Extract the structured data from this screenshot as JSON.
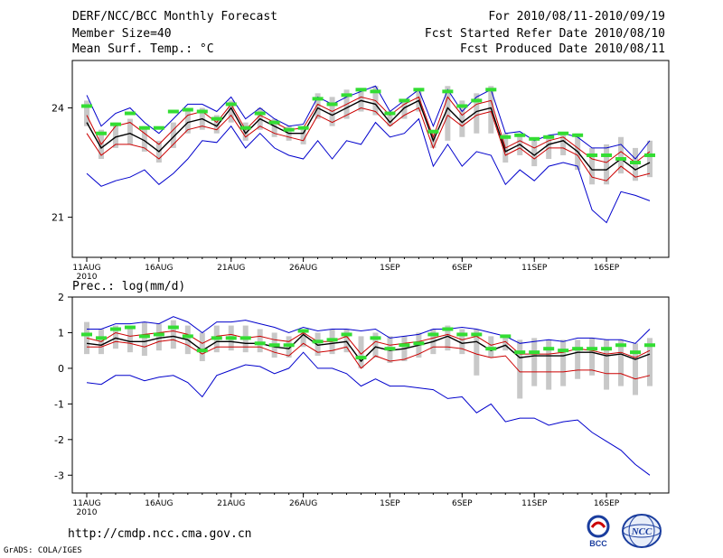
{
  "header": {
    "title": "DERF/NCC/BCC Monthly Forecast",
    "member": "Member Size=40",
    "variable": "Mean Surf. Temp.: °C",
    "period": "For 2010/08/11-2010/09/19",
    "started": "Fcst Started Refer Date 2010/08/10",
    "produced": "Fcst Produced Date 2010/08/11"
  },
  "footer": {
    "url": "http://cmdp.ncc.cma.gov.cn",
    "grads": "GrADS: COLA/IGES",
    "logo1": "BCC",
    "logo2": "NCC"
  },
  "colors": {
    "max_min": "#0000cc",
    "band": "#cc0000",
    "mean": "#000000",
    "box": "#c8c8c8",
    "obs": "#33dd33"
  },
  "chart_data": [
    {
      "type": "line",
      "title": "Mean Surf. Temp.: °C",
      "xlabel": "",
      "ylabel": "",
      "x_ticks": [
        "11AUG",
        "16AUG",
        "21AUG",
        "26AUG",
        "1SEP",
        "6SEP",
        "11SEP",
        "16SEP"
      ],
      "x_tick_days": [
        0,
        5,
        10,
        15,
        21,
        26,
        31,
        36
      ],
      "x_year": "2010",
      "ndays": 40,
      "ylim": [
        19.9,
        25.3
      ],
      "y_ticks": [
        21,
        24
      ],
      "series": [
        {
          "name": "max",
          "color": "#0000cc",
          "values": [
            24.35,
            23.5,
            23.85,
            24.0,
            23.6,
            23.3,
            23.7,
            24.1,
            24.1,
            23.9,
            24.3,
            23.7,
            24.0,
            23.7,
            23.5,
            23.55,
            24.3,
            24.1,
            24.3,
            24.45,
            24.6,
            23.9,
            24.2,
            24.5,
            23.5,
            24.5,
            23.9,
            24.3,
            24.5,
            23.3,
            23.35,
            23.1,
            23.25,
            23.3,
            23.2,
            22.9,
            22.9,
            23.0,
            22.6,
            23.1
          ]
        },
        {
          "name": "upper",
          "color": "#cc0000",
          "values": [
            23.8,
            23.0,
            23.5,
            23.6,
            23.3,
            23.0,
            23.4,
            23.8,
            23.9,
            23.6,
            24.1,
            23.4,
            23.8,
            23.6,
            23.4,
            23.45,
            24.1,
            23.9,
            24.1,
            24.3,
            24.2,
            23.8,
            24.1,
            24.3,
            23.2,
            24.3,
            23.8,
            24.1,
            24.2,
            22.9,
            23.1,
            22.9,
            23.1,
            23.2,
            22.9,
            22.6,
            22.5,
            22.8,
            22.5,
            22.8
          ]
        },
        {
          "name": "mean",
          "color": "#000000",
          "values": [
            23.6,
            22.9,
            23.2,
            23.3,
            23.1,
            22.8,
            23.2,
            23.6,
            23.7,
            23.5,
            24.0,
            23.3,
            23.7,
            23.5,
            23.3,
            23.3,
            24.0,
            23.8,
            24.0,
            24.2,
            24.1,
            23.6,
            24.0,
            24.2,
            23.1,
            24.0,
            23.6,
            23.9,
            24.0,
            22.8,
            23.0,
            22.7,
            23.0,
            23.1,
            22.8,
            22.3,
            22.3,
            22.6,
            22.3,
            22.5
          ]
        },
        {
          "name": "lower",
          "color": "#cc0000",
          "values": [
            23.3,
            22.7,
            23.0,
            23.0,
            22.9,
            22.6,
            23.0,
            23.4,
            23.5,
            23.4,
            23.8,
            23.2,
            23.5,
            23.3,
            23.2,
            23.1,
            23.8,
            23.6,
            23.8,
            24.0,
            23.9,
            23.5,
            23.8,
            24.0,
            22.9,
            23.8,
            23.5,
            23.8,
            23.9,
            22.7,
            22.9,
            22.6,
            22.9,
            22.9,
            22.7,
            22.1,
            22.0,
            22.4,
            22.1,
            22.2
          ]
        },
        {
          "name": "min",
          "color": "#0000cc",
          "values": [
            22.2,
            21.85,
            22.0,
            22.1,
            22.3,
            21.9,
            22.2,
            22.6,
            23.1,
            23.05,
            23.5,
            22.9,
            23.3,
            22.9,
            22.7,
            22.6,
            23.1,
            22.6,
            23.1,
            23.0,
            23.6,
            23.2,
            23.3,
            23.7,
            22.4,
            23.0,
            22.4,
            22.8,
            22.7,
            21.9,
            22.3,
            22.0,
            22.4,
            22.5,
            22.4,
            21.2,
            20.85,
            21.7,
            21.6,
            21.45
          ]
        }
      ],
      "boxes": {
        "lo": [
          23.5,
          22.6,
          22.9,
          23.0,
          22.8,
          22.5,
          22.9,
          23.3,
          23.4,
          23.3,
          23.6,
          23.1,
          23.4,
          23.2,
          23.1,
          23.0,
          23.7,
          23.5,
          23.7,
          23.9,
          23.8,
          23.5,
          23.7,
          23.9,
          22.9,
          23.1,
          23.2,
          23.3,
          23.3,
          22.5,
          22.7,
          22.4,
          22.6,
          22.7,
          22.3,
          21.9,
          21.9,
          22.2,
          22.0,
          22.1
        ],
        "hi": [
          24.2,
          23.4,
          23.6,
          23.7,
          23.5,
          23.1,
          23.6,
          24.0,
          24.0,
          23.8,
          24.2,
          23.6,
          24.0,
          23.7,
          23.5,
          23.4,
          24.4,
          24.3,
          24.5,
          24.5,
          24.6,
          23.9,
          24.2,
          24.5,
          23.3,
          24.6,
          24.2,
          24.4,
          24.6,
          23.3,
          23.3,
          23.1,
          23.2,
          23.3,
          23.3,
          22.9,
          23.0,
          23.2,
          22.9,
          23.1
        ]
      },
      "observed": [
        24.05,
        23.3,
        23.55,
        23.85,
        23.45,
        23.45,
        23.9,
        23.95,
        23.9,
        23.7,
        24.1,
        23.45,
        23.85,
        23.6,
        23.4,
        23.45,
        24.25,
        24.1,
        24.35,
        24.5,
        24.45,
        23.85,
        24.2,
        24.5,
        23.35,
        24.45,
        24.05,
        24.2,
        24.5,
        23.2,
        23.25,
        23.15,
        23.2,
        23.3,
        23.25,
        22.7,
        22.7,
        22.6,
        22.5,
        22.7
      ]
    },
    {
      "type": "line",
      "title": "Prec.: log(mm/d)",
      "xlabel": "",
      "ylabel": "",
      "x_ticks": [
        "11AUG",
        "16AUG",
        "21AUG",
        "26AUG",
        "1SEP",
        "6SEP",
        "11SEP",
        "16SEP"
      ],
      "x_tick_days": [
        0,
        5,
        10,
        15,
        21,
        26,
        31,
        36
      ],
      "x_year": "2010",
      "ndays": 40,
      "ylim": [
        -3.5,
        2.0
      ],
      "y_ticks": [
        -3,
        -2,
        -1,
        0,
        1,
        2
      ],
      "series": [
        {
          "name": "max",
          "color": "#0000cc",
          "values": [
            1.1,
            1.1,
            1.25,
            1.25,
            1.3,
            1.25,
            1.45,
            1.3,
            1.0,
            1.3,
            1.3,
            1.35,
            1.25,
            1.15,
            1.0,
            1.15,
            1.05,
            1.1,
            1.1,
            1.05,
            1.1,
            0.85,
            0.9,
            0.95,
            1.1,
            1.1,
            1.15,
            1.1,
            1.0,
            0.9,
            0.7,
            0.75,
            0.8,
            0.75,
            0.85,
            0.85,
            0.8,
            0.8,
            0.7,
            1.1
          ]
        },
        {
          "name": "upper",
          "color": "#cc0000",
          "values": [
            0.85,
            0.75,
            1.0,
            0.9,
            0.95,
            1.0,
            1.05,
            0.95,
            0.7,
            0.9,
            0.95,
            0.85,
            0.9,
            0.8,
            0.75,
            1.0,
            0.75,
            0.75,
            0.9,
            0.4,
            0.75,
            0.65,
            0.7,
            0.75,
            0.85,
            0.95,
            0.8,
            0.9,
            0.65,
            0.75,
            0.4,
            0.4,
            0.4,
            0.45,
            0.55,
            0.5,
            0.4,
            0.45,
            0.3,
            0.5
          ]
        },
        {
          "name": "mean",
          "color": "#000000",
          "values": [
            0.7,
            0.65,
            0.85,
            0.75,
            0.75,
            0.85,
            0.9,
            0.8,
            0.5,
            0.75,
            0.75,
            0.7,
            0.7,
            0.6,
            0.55,
            0.95,
            0.65,
            0.7,
            0.75,
            0.2,
            0.6,
            0.5,
            0.55,
            0.65,
            0.75,
            0.9,
            0.7,
            0.75,
            0.5,
            0.65,
            0.3,
            0.35,
            0.35,
            0.35,
            0.45,
            0.45,
            0.35,
            0.4,
            0.25,
            0.4
          ]
        },
        {
          "name": "lower",
          "color": "#cc0000",
          "values": [
            0.6,
            0.6,
            0.75,
            0.7,
            0.6,
            0.75,
            0.8,
            0.65,
            0.4,
            0.6,
            0.6,
            0.6,
            0.6,
            0.45,
            0.35,
            0.7,
            0.45,
            0.5,
            0.6,
            0.0,
            0.35,
            0.2,
            0.25,
            0.4,
            0.6,
            0.6,
            0.55,
            0.4,
            0.3,
            0.35,
            -0.1,
            -0.1,
            -0.1,
            -0.1,
            -0.05,
            -0.05,
            -0.15,
            -0.15,
            -0.3,
            -0.2
          ]
        },
        {
          "name": "min",
          "color": "#0000cc",
          "values": [
            -0.4,
            -0.45,
            -0.2,
            -0.2,
            -0.35,
            -0.25,
            -0.2,
            -0.4,
            -0.8,
            -0.2,
            -0.05,
            0.1,
            0.05,
            -0.15,
            0.0,
            0.45,
            0.0,
            0.0,
            -0.15,
            -0.5,
            -0.3,
            -0.5,
            -0.5,
            -0.55,
            -0.6,
            -0.85,
            -0.8,
            -1.25,
            -1.0,
            -1.5,
            -1.4,
            -1.4,
            -1.6,
            -1.5,
            -1.45,
            -1.8,
            -2.05,
            -2.3,
            -2.7,
            -3.0
          ]
        }
      ],
      "boxes": {
        "lo": [
          0.4,
          0.4,
          0.55,
          0.45,
          0.35,
          0.5,
          0.55,
          0.4,
          0.2,
          0.45,
          0.5,
          0.45,
          0.45,
          0.3,
          0.3,
          0.6,
          0.35,
          0.4,
          0.45,
          0.0,
          0.3,
          0.15,
          0.2,
          0.3,
          0.4,
          0.5,
          0.4,
          -0.2,
          0.3,
          0.5,
          -0.85,
          -0.5,
          -0.6,
          -0.5,
          -0.3,
          -0.2,
          -0.6,
          -0.5,
          -0.75,
          -0.5
        ],
        "hi": [
          1.3,
          1.1,
          1.2,
          1.2,
          1.3,
          1.25,
          1.35,
          1.2,
          1.0,
          1.2,
          1.2,
          1.2,
          1.1,
          1.0,
          0.9,
          1.1,
          1.0,
          1.1,
          1.1,
          0.9,
          1.0,
          0.9,
          0.9,
          1.0,
          1.1,
          1.2,
          1.1,
          1.1,
          0.9,
          0.9,
          0.8,
          0.85,
          0.8,
          0.8,
          0.8,
          0.85,
          0.8,
          0.8,
          0.7,
          0.85
        ]
      },
      "observed": [
        0.95,
        0.85,
        1.1,
        1.15,
        0.9,
        0.95,
        1.15,
        0.9,
        0.5,
        0.85,
        0.85,
        0.85,
        0.7,
        0.65,
        0.65,
        1.05,
        0.75,
        0.8,
        0.95,
        0.3,
        0.85,
        0.55,
        0.65,
        0.7,
        0.95,
        1.1,
        0.95,
        0.95,
        0.55,
        0.9,
        0.45,
        0.45,
        0.55,
        0.5,
        0.55,
        0.55,
        0.55,
        0.65,
        0.45,
        0.65
      ]
    }
  ]
}
